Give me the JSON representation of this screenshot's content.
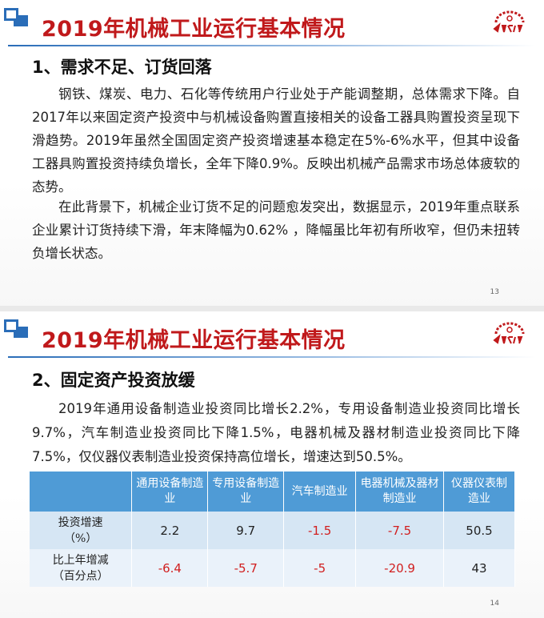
{
  "slides": [
    {
      "title": "2019年机械工业运行基本情况",
      "heading": "1、需求不足、订货回落",
      "paragraphs": [
        "钢铁、煤炭、电力、石化等传统用户行业处于产能调整期，总体需求下降。自2017年以来固定资产投资中与机械设备购置直接相关的设备工器具购置投资呈现下滑趋势。2019年虽然全国固定资产投资增速基本稳定在5%-6%水平，但其中设备工器具购置投资持续负增长，全年下降0.9%。反映出机械产品需求市场总体疲软的态势。",
        "在此背景下，机械企业订货不足的问题愈发突出，数据显示，2019年重点联系企业累计订货持续下滑，年末降幅为0.62% ，降幅虽比年初有所收窄，但仍未扭转负增长状态。"
      ],
      "page_number": "13"
    },
    {
      "title": "2019年机械工业运行基本情况",
      "heading": "2、固定资产投资放缓",
      "paragraphs": [
        "2019年通用设备制造业投资同比增长2.2%，专用设备制造业投资同比增长9.7%，汽车制造业投资同比下降1.5%，电器机械及器材制造业投资同比下降7.5%，仅仪器仪表制造业投资保持高位增长，增速达到50.5%。"
      ],
      "table": {
        "columns": [
          "通用设备制造业",
          "专用设备制造业",
          "汽车制造业",
          "电器机械及器材制造业",
          "仪器仪表制造业"
        ],
        "rows": [
          {
            "label_line1": "投资增速",
            "label_line2": "（%）",
            "values": [
              "2.2",
              "9.7",
              "-1.5",
              "-7.5",
              "50.5"
            ]
          },
          {
            "label_line1": "比上年增减",
            "label_line2": "（百分点）",
            "values": [
              "-6.4",
              "-5.7",
              "-5",
              "-20.9",
              "43"
            ]
          }
        ]
      },
      "page_number": "14"
    }
  ],
  "colors": {
    "title_red": "#c0191b",
    "accent_blue": "#2a6db8",
    "table_header": "#4f9bd6",
    "negative_red": "#d11f1f"
  },
  "icons": [
    "corner-logo-icon",
    "cmif-gear-logo-icon"
  ]
}
